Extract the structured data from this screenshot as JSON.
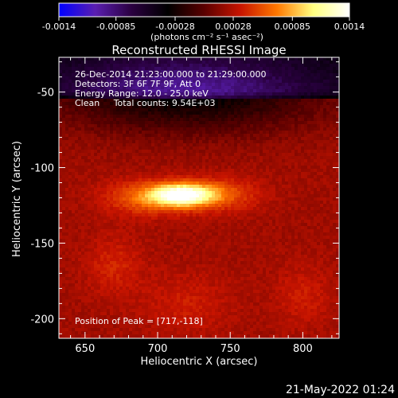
{
  "chart_data": {
    "type": "heatmap",
    "title": "Reconstructed RHESSI Image",
    "xlabel": "Heliocentric X (arcsec)",
    "ylabel": "Heliocentric Y (arcsec)",
    "xlim": [
      632,
      825
    ],
    "ylim": [
      -213,
      -27
    ],
    "x_ticks": [
      650,
      700,
      750,
      800
    ],
    "y_ticks": [
      -50,
      -100,
      -150,
      -200
    ],
    "colorbar": {
      "range": [
        -0.0014,
        0.0014
      ],
      "tick_values": [
        -0.0014,
        -0.00085,
        -0.00028,
        0.00028,
        0.00085,
        0.0014
      ],
      "tick_labels": [
        "-0.0014",
        "-0.00085",
        "-0.00028",
        "0.00028",
        "0.00085",
        "0.0014"
      ],
      "units_label": "(photons cm⁻² s⁻¹ asec⁻²)",
      "colormap": [
        "#0000ff",
        "#5a1eb0",
        "#2a0040",
        "#000000",
        "#5a0000",
        "#c81400",
        "#ff7800",
        "#ffff80",
        "#ffffff"
      ]
    },
    "annotations": [
      "26-Dec-2014 21:23:00.000 to 21:29:00.000",
      "Detectors: 3F 6F 7F 9F, Att 0",
      "Energy Range: 12.0 - 25.0 keV",
      "Clean     Total counts: 9.54E+03"
    ],
    "peak_label": "Position of Peak = [717,-118]",
    "peak": [
      717,
      -118
    ],
    "sources": [
      {
        "x": 717,
        "y": -118,
        "sx": 15,
        "sy": 5,
        "amp": 0.0011
      },
      {
        "x": 695,
        "y": -120,
        "sx": 22,
        "sy": 8,
        "amp": 0.0004
      },
      {
        "x": 745,
        "y": -118,
        "sx": 18,
        "sy": 8,
        "amp": 0.0003
      },
      {
        "x": 670,
        "y": -165,
        "sx": 14,
        "sy": 14,
        "amp": 0.00018
      },
      {
        "x": 720,
        "y": -190,
        "sx": 22,
        "sy": 14,
        "amp": 0.00015
      },
      {
        "x": 800,
        "y": -185,
        "sx": 14,
        "sy": 14,
        "amp": 0.00015
      }
    ],
    "negative_region": {
      "x": 720,
      "y": -50,
      "sx": 65,
      "sy": 18,
      "amp": -0.0006
    },
    "background": 0.00022
  },
  "timestamp": "21-May-2022 01:24"
}
